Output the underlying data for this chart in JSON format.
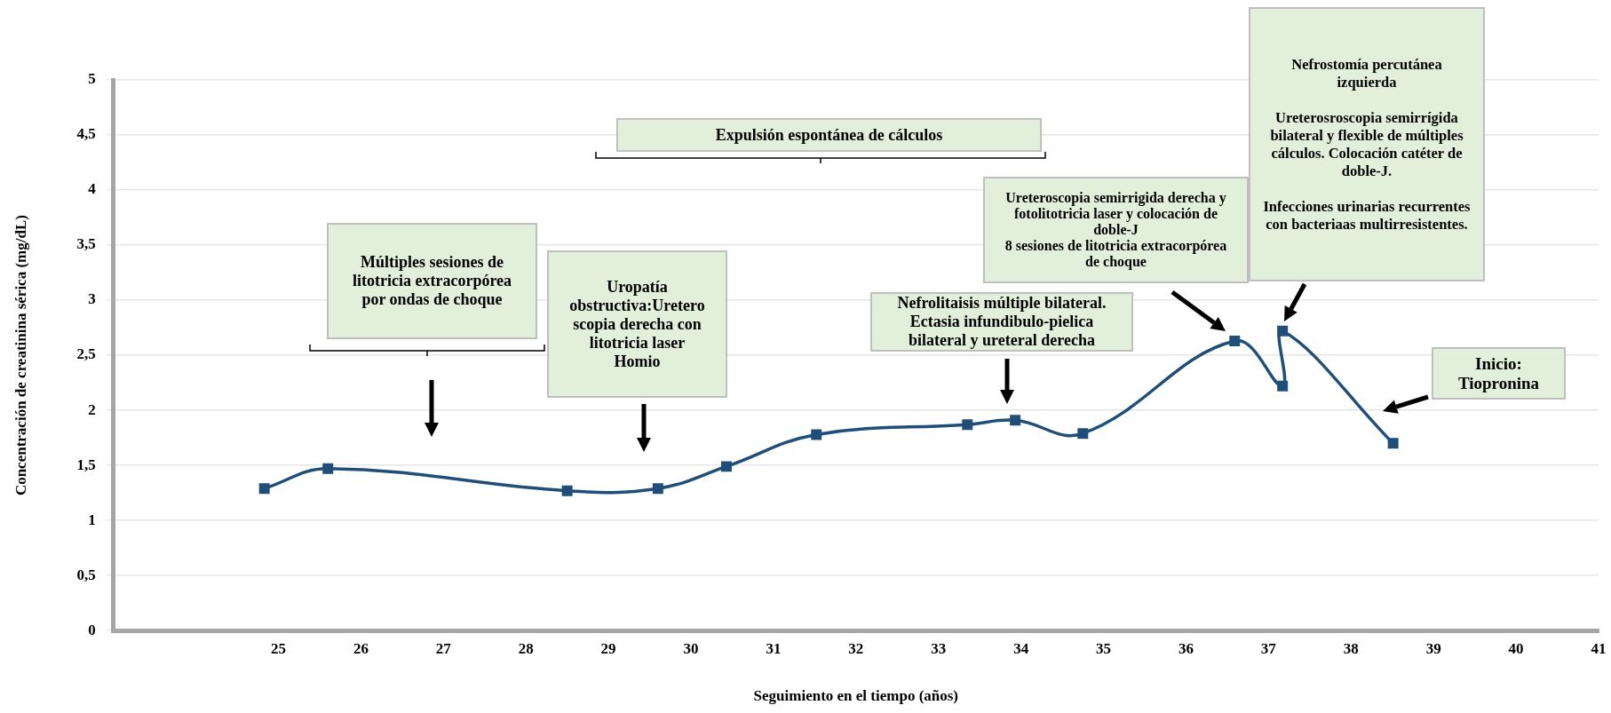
{
  "chart_data": {
    "type": "line",
    "xlabel": "Seguimiento en el tiempo (años)",
    "ylabel": "Concentración de creatinina sérica (mg/dL)",
    "x": [
      24.83,
      25.6,
      28.5,
      29.6,
      30.43,
      31.52,
      33.35,
      33.93,
      34.75,
      36.59,
      37.17,
      37.17,
      38.51
    ],
    "series": [
      {
        "color": "#1f4e79",
        "values": [
          1.29,
          1.47,
          1.27,
          1.29,
          1.49,
          1.78,
          1.87,
          1.91,
          1.79,
          2.63,
          2.22,
          2.72,
          1.7
        ]
      }
    ],
    "xlim": [
      23,
      41
    ],
    "xticks": [
      25,
      26,
      27,
      28,
      29,
      30,
      31,
      32,
      33,
      34,
      35,
      36,
      37,
      38,
      39,
      40,
      41
    ],
    "ylim": [
      0,
      5
    ],
    "yticks": [
      0,
      {
        "value": 0.5,
        "label": "0,5"
      },
      1,
      {
        "value": 1.5,
        "label": "1,5"
      },
      2,
      {
        "value": 2.5,
        "label": "2,5"
      },
      3,
      {
        "value": 3.5,
        "label": "3,5"
      },
      4,
      {
        "value": 4.5,
        "label": "4,5"
      },
      5
    ],
    "grid": "y",
    "legend": false,
    "marker": "square",
    "line_style": "solid",
    "annotations": [
      "Múltiples sesiones de litotricia extracorpórea por ondas de choque",
      "Uropatía obstructiva:Uretero scopia derecha con litotricia laser Homio",
      "Expulsión espontánea de cálculos",
      "Nefrolitaisis múltiple bilateral. Ectasia infundibulo-pielica bilateral y ureteral derecha",
      "Ureteroscopia semirrigida derecha y fotolitotricia laser y colocación de doble-J\n8 sesiones de litotricia extracorpórea de choque",
      "Nefrostomía percutánea izquierda\n\nUreterosroscopia semirrígida bilateral y flexible de múltiples cálculos. Colocación catéter de doble-J.\n\nInfecciones urinarias recurrentes con bacteriaas multirresistentes.",
      "Inicio: Tiopronina"
    ]
  }
}
